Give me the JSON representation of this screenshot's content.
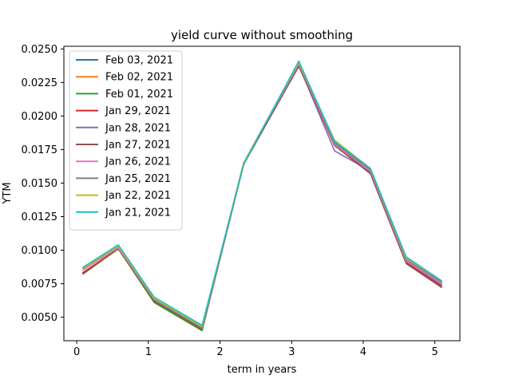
{
  "chart_data": {
    "type": "line",
    "title": "yield curve without smoothing",
    "xlabel": "term in years",
    "ylabel": "YTM",
    "xlim": [
      -0.18,
      5.35
    ],
    "ylim": [
      0.00325,
      0.0252
    ],
    "x_ticks": [
      0,
      1,
      2,
      3,
      4,
      5
    ],
    "x_tick_labels": [
      "0",
      "1",
      "2",
      "3",
      "4",
      "5"
    ],
    "y_ticks": [
      0.005,
      0.0075,
      0.01,
      0.0125,
      0.015,
      0.0175,
      0.02,
      0.0225,
      0.025
    ],
    "y_tick_labels": [
      "0.0050",
      "0.0075",
      "0.0100",
      "0.0125",
      "0.0150",
      "0.0175",
      "0.0200",
      "0.0225",
      "0.0250"
    ],
    "grid": false,
    "legend_position": "top-left",
    "series": [
      {
        "name": "Feb 03, 2021",
        "color": "#1f77b4",
        "x": [
          0.08,
          0.58,
          1.08,
          1.75,
          2.33,
          3.1,
          3.6,
          4.1,
          4.6,
          5.1
        ],
        "y": [
          0.0086,
          0.0103,
          0.0062,
          0.0041,
          0.0165,
          0.024,
          0.018,
          0.016,
          0.0093,
          0.0075
        ]
      },
      {
        "name": "Feb 02, 2021",
        "color": "#ff7f0e",
        "x": [
          0.08,
          0.58,
          1.08,
          1.75,
          2.33,
          3.1,
          3.6,
          4.1,
          4.6,
          5.1
        ],
        "y": [
          0.0085,
          0.0102,
          0.0062,
          0.0041,
          0.0165,
          0.0239,
          0.018,
          0.016,
          0.0093,
          0.0075
        ]
      },
      {
        "name": "Feb 01, 2021",
        "color": "#2ca02c",
        "x": [
          0.08,
          0.58,
          1.08,
          1.75,
          2.33,
          3.1,
          3.6,
          4.1,
          4.6,
          5.1
        ],
        "y": [
          0.0083,
          0.0101,
          0.0061,
          0.004,
          0.0164,
          0.0238,
          0.0179,
          0.0159,
          0.0092,
          0.0074
        ]
      },
      {
        "name": "Jan 29, 2021",
        "color": "#d62728",
        "x": [
          0.08,
          0.58,
          1.08,
          1.75,
          2.33,
          3.1,
          3.6,
          4.1,
          4.6,
          5.1
        ],
        "y": [
          0.0083,
          0.0101,
          0.0062,
          0.0041,
          0.0164,
          0.0238,
          0.0178,
          0.0158,
          0.0091,
          0.0073
        ]
      },
      {
        "name": "Jan 28, 2021",
        "color": "#9467bd",
        "x": [
          0.08,
          0.58,
          1.08,
          1.75,
          2.33,
          3.1,
          3.6,
          4.1,
          4.6,
          5.1
        ],
        "y": [
          0.0087,
          0.0103,
          0.0063,
          0.0042,
          0.0164,
          0.0238,
          0.0174,
          0.0159,
          0.0092,
          0.0074
        ]
      },
      {
        "name": "Jan 27, 2021",
        "color": "#8c564b",
        "x": [
          0.08,
          0.58,
          1.08,
          1.75,
          2.33,
          3.1,
          3.6,
          4.1,
          4.6,
          5.1
        ],
        "y": [
          0.0082,
          0.0101,
          0.0062,
          0.0041,
          0.0164,
          0.0237,
          0.0178,
          0.0157,
          0.009,
          0.0072
        ]
      },
      {
        "name": "Jan 26, 2021",
        "color": "#e377c2",
        "x": [
          0.08,
          0.58,
          1.08,
          1.75,
          2.33,
          3.1,
          3.6,
          4.1,
          4.6,
          5.1
        ],
        "y": [
          0.0085,
          0.0102,
          0.0063,
          0.0042,
          0.0165,
          0.0239,
          0.0179,
          0.0159,
          0.0092,
          0.0075
        ]
      },
      {
        "name": "Jan 25, 2021",
        "color": "#7f7f7f",
        "x": [
          0.08,
          0.58,
          1.08,
          1.75,
          2.33,
          3.1,
          3.6,
          4.1,
          4.6,
          5.1
        ],
        "y": [
          0.0086,
          0.0103,
          0.0063,
          0.0042,
          0.0165,
          0.024,
          0.018,
          0.016,
          0.0093,
          0.0076
        ]
      },
      {
        "name": "Jan 22, 2021",
        "color": "#bcbd22",
        "x": [
          0.08,
          0.58,
          1.08,
          1.75,
          2.33,
          3.1,
          3.6,
          4.1,
          4.6,
          5.1
        ],
        "y": [
          0.0086,
          0.0103,
          0.0064,
          0.0043,
          0.0165,
          0.024,
          0.0182,
          0.0161,
          0.0094,
          0.0077
        ]
      },
      {
        "name": "Jan 21, 2021",
        "color": "#17becf",
        "x": [
          0.08,
          0.58,
          1.08,
          1.75,
          2.33,
          3.1,
          3.6,
          4.1,
          4.6,
          5.1
        ],
        "y": [
          0.0087,
          0.0104,
          0.0065,
          0.0044,
          0.0164,
          0.0241,
          0.0181,
          0.0161,
          0.0095,
          0.0077
        ]
      }
    ]
  }
}
